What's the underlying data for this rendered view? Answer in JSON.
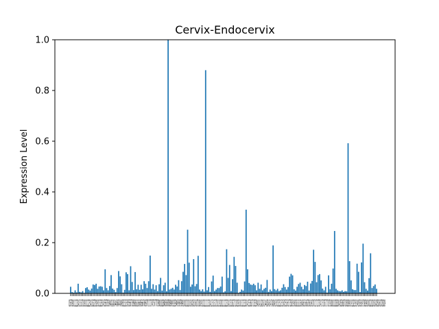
{
  "chart_data": {
    "type": "bar",
    "title": "Cervix-Endocervix",
    "xlabel": "",
    "ylabel": "Expression Level",
    "ylim": [
      0,
      1.0
    ],
    "yticks": [
      "0.0",
      "0.2",
      "0.4",
      "0.6",
      "0.8",
      "1.0"
    ],
    "xtick_text": "0156789101112131415161718192021222324252627282930313233343536373839404142434445464748495051525354555657585960616263646566676869707172737475767778798081828384858687888990919293949596979899100101102103104105106107108109110111112113114115116117118119120121122123124125126127128129130131132133134135136137138139140141142143144145146147148149150151152153154155156157158159160161162163164165166167168169170171172173174175176177178179180181182183184185186187188189190191192193194195196197198199200201202203204205206207208209",
    "color": "#1f77b4",
    "values": [
      0.026,
      0.005,
      0.003,
      0.012,
      0.004,
      0.038,
      0.006,
      0.004,
      0.009,
      0.002,
      0.021,
      0.024,
      0.015,
      0.011,
      0.019,
      0.035,
      0.033,
      0.038,
      0.018,
      0.027,
      0.028,
      0.026,
      0.012,
      0.095,
      0.021,
      0.012,
      0.029,
      0.072,
      0.019,
      0.014,
      0.005,
      0.021,
      0.088,
      0.067,
      0.036,
      0.003,
      0.014,
      0.083,
      0.076,
      0.012,
      0.107,
      0.045,
      0.013,
      0.084,
      0.016,
      0.034,
      0.014,
      0.034,
      0.016,
      0.048,
      0.038,
      0.021,
      0.048,
      0.149,
      0.018,
      0.036,
      0.015,
      0.032,
      0.009,
      0.036,
      0.061,
      0.011,
      0.032,
      0.042,
      0.008,
      1.0,
      0.015,
      0.018,
      0.022,
      0.015,
      0.034,
      0.027,
      0.052,
      0.013,
      0.048,
      0.085,
      0.116,
      0.072,
      0.251,
      0.121,
      0.026,
      0.035,
      0.135,
      0.028,
      0.037,
      0.148,
      0.015,
      0.009,
      0.016,
      0.007,
      0.88,
      0.012,
      0.025,
      0.006,
      0.047,
      0.07,
      0.009,
      0.015,
      0.021,
      0.021,
      0.027,
      0.066,
      0.004,
      0.008,
      0.174,
      0.061,
      0.112,
      0.009,
      0.056,
      0.144,
      0.108,
      0.042,
      0.002,
      0.006,
      0.015,
      0.011,
      0.047,
      0.33,
      0.095,
      0.041,
      0.035,
      0.033,
      0.038,
      0.032,
      0.012,
      0.042,
      0.018,
      0.035,
      0.012,
      0.018,
      0.022,
      0.053,
      0.006,
      0.015,
      0.009,
      0.189,
      0.017,
      0.012,
      0.018,
      0.009,
      0.012,
      0.022,
      0.036,
      0.025,
      0.015,
      0.025,
      0.066,
      0.077,
      0.071,
      0.016,
      0.011,
      0.026,
      0.037,
      0.042,
      0.026,
      0.016,
      0.033,
      0.029,
      0.046,
      0.011,
      0.039,
      0.049,
      0.172,
      0.124,
      0.044,
      0.072,
      0.076,
      0.051,
      0.019,
      0.012,
      0.026,
      0.003,
      0.071,
      0.016,
      0.038,
      0.098,
      0.246,
      0.018,
      0.012,
      0.009,
      0.008,
      0.012,
      0.006,
      0.009,
      0.008,
      0.592,
      0.127,
      0.051,
      0.016,
      0.013,
      0.013,
      0.117,
      0.085,
      0.005,
      0.122,
      0.196,
      0.044,
      0.018,
      0.011,
      0.06,
      0.158,
      0.021,
      0.029,
      0.035,
      0.018
    ]
  }
}
